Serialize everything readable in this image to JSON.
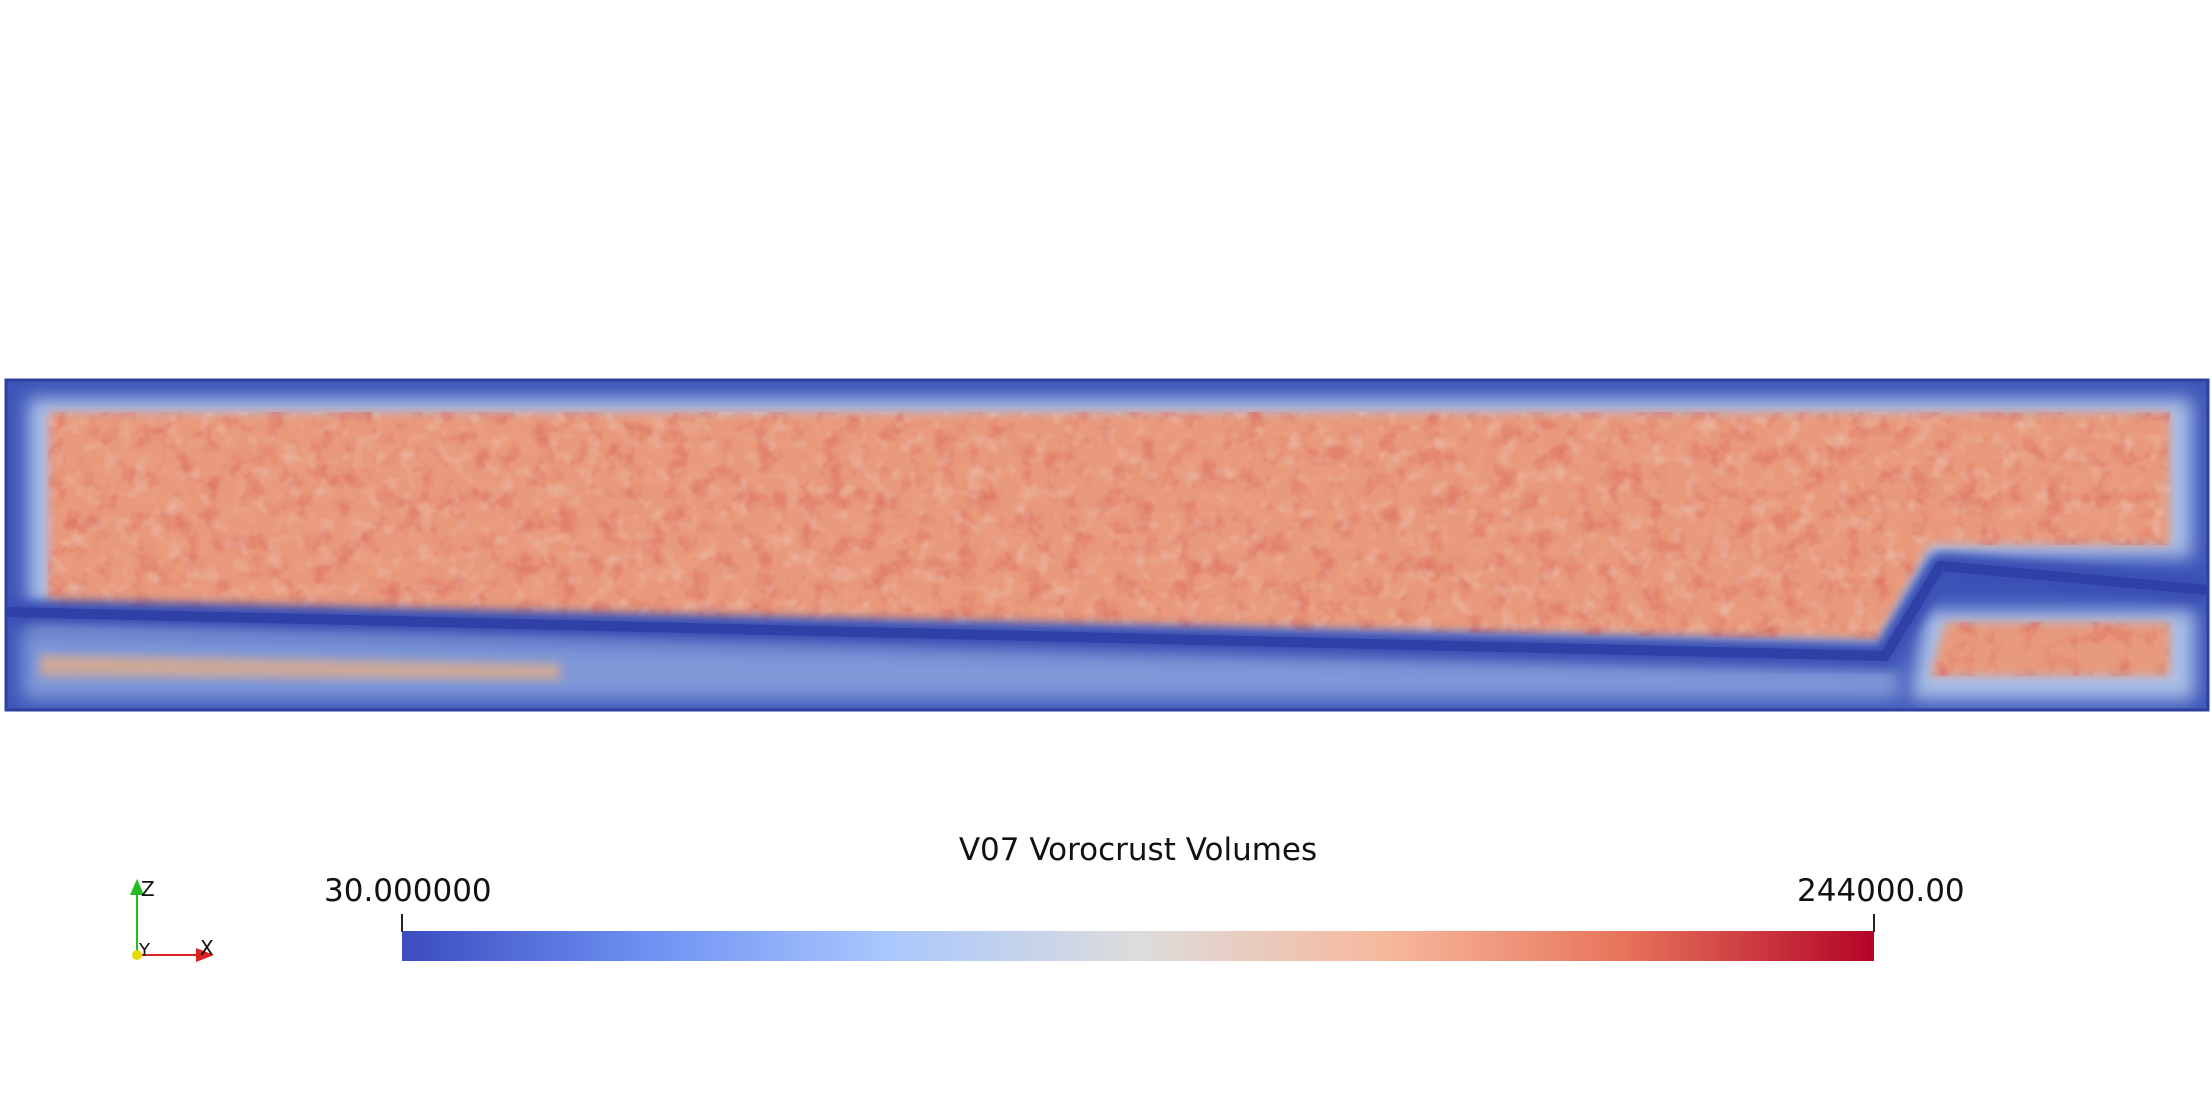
{
  "scene": {
    "title": "V07 Vorocrust Volumes",
    "description_colors": {
      "background": "#ffffff",
      "low": "#3b4cc0",
      "mid": "#dddddd",
      "high": "#b40426"
    }
  },
  "colorbar": {
    "title": "V07 Vorocrust Volumes",
    "min_label": "30.000000",
    "max_label": "244000.00",
    "min_value": 30.0,
    "max_value": 244000.0,
    "colormap": "coolwarm",
    "stops": [
      "#3b4cc0",
      "#6f92f3",
      "#aac7fd",
      "#dddcdc",
      "#f7b89c",
      "#e7745b",
      "#b40426"
    ]
  },
  "axes": {
    "z_label": "Z",
    "y_label": "Y",
    "x_label": "X",
    "z_color": "#22bb22",
    "y_color": "#e6d800",
    "x_color": "#dd2222"
  }
}
